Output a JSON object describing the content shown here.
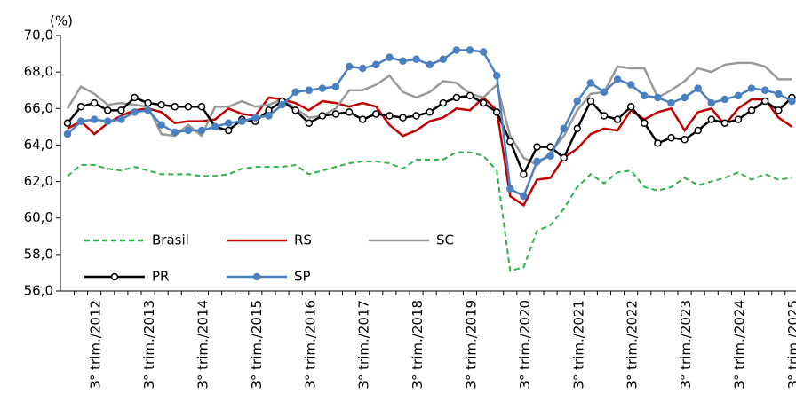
{
  "chart_data": {
    "type": "line",
    "y_label": "(%)",
    "categories": [
      null,
      null,
      "3° trim./2012",
      null,
      null,
      null,
      "3° trim./2013",
      null,
      null,
      null,
      "3° trim./2014",
      null,
      null,
      null,
      "3° trim./2015",
      null,
      null,
      null,
      "3° trim./2016",
      null,
      null,
      null,
      "3° trim./2017",
      null,
      null,
      null,
      "3° trim./2018",
      null,
      null,
      null,
      "3° trim./2019",
      null,
      null,
      null,
      "3° trim./2020",
      null,
      null,
      null,
      "3° trim./2021",
      null,
      null,
      null,
      "3° trim./2022",
      null,
      null,
      null,
      "3° trim./2023",
      null,
      null,
      null,
      "3° trim./2024",
      null,
      null,
      null,
      "3° trim./2025"
    ],
    "ylim": [
      56,
      70
    ],
    "yticks": [
      {
        "value": 56,
        "label": "56,0"
      },
      {
        "value": 58,
        "label": "58,0"
      },
      {
        "value": 60,
        "label": "60,0"
      },
      {
        "value": 62,
        "label": "62,0"
      },
      {
        "value": 64,
        "label": "64,0"
      },
      {
        "value": 66,
        "label": "66,0"
      },
      {
        "value": 68,
        "label": "68,0"
      },
      {
        "value": 70,
        "label": "70,0"
      }
    ],
    "series": [
      {
        "name": "Brasil",
        "color": "#2db34a",
        "style": "dashed",
        "values": [
          62.3,
          62.9,
          62.9,
          62.7,
          62.6,
          62.8,
          62.6,
          62.4,
          62.4,
          62.4,
          62.3,
          62.3,
          62.4,
          62.7,
          62.8,
          62.8,
          62.8,
          62.9,
          62.4,
          62.6,
          62.8,
          63.0,
          63.1,
          63.1,
          63.0,
          62.7,
          63.2,
          63.2,
          63.2,
          63.6,
          63.6,
          63.4,
          62.6,
          57.1,
          57.3,
          59.3,
          59.6,
          60.5,
          61.7,
          62.4,
          61.9,
          62.5,
          62.6,
          61.7,
          61.5,
          61.7,
          62.2,
          61.8,
          62.0,
          62.2,
          62.5,
          62.1,
          62.4,
          62.1,
          62.2
        ]
      },
      {
        "name": "RS",
        "color": "#c00000",
        "style": "solid",
        "values": [
          64.9,
          65.3,
          64.6,
          65.2,
          65.6,
          65.9,
          66.0,
          65.8,
          65.2,
          65.3,
          65.3,
          65.4,
          66.0,
          65.7,
          65.6,
          66.6,
          66.5,
          66.3,
          65.9,
          66.4,
          66.3,
          66.1,
          66.3,
          66.1,
          65.1,
          64.5,
          64.8,
          65.3,
          65.5,
          66.0,
          65.9,
          66.6,
          65.9,
          61.2,
          60.7,
          62.1,
          62.2,
          63.3,
          63.8,
          64.6,
          64.9,
          64.8,
          65.9,
          65.4,
          65.8,
          66.0,
          64.8,
          65.8,
          66.0,
          65.1,
          66.0,
          66.5,
          66.5,
          65.5,
          65.0
        ]
      },
      {
        "name": "SC",
        "color": "#999999",
        "style": "solid",
        "values": [
          66.0,
          67.2,
          66.8,
          66.2,
          66.3,
          66.2,
          66.1,
          64.6,
          64.5,
          65.1,
          64.5,
          66.1,
          66.1,
          66.4,
          66.1,
          66.2,
          66.5,
          66.0,
          65.5,
          65.6,
          66.0,
          67.0,
          67.0,
          67.3,
          67.8,
          66.9,
          66.6,
          66.9,
          67.5,
          67.4,
          66.8,
          66.6,
          67.3,
          64.5,
          63.3,
          62.9,
          63.6,
          64.5,
          65.9,
          66.8,
          66.9,
          68.3,
          68.2,
          68.2,
          66.6,
          67.0,
          67.5,
          68.2,
          68.0,
          68.4,
          68.5,
          68.5,
          68.3,
          67.6,
          67.6
        ]
      },
      {
        "name": "PR",
        "color": "#000000",
        "style": "open-marker",
        "values": [
          65.2,
          66.1,
          66.3,
          65.9,
          65.9,
          66.6,
          66.3,
          66.2,
          66.1,
          66.1,
          66.1,
          65.0,
          64.8,
          65.4,
          65.3,
          65.9,
          66.4,
          65.9,
          65.2,
          65.6,
          65.7,
          65.8,
          65.4,
          65.7,
          65.6,
          65.5,
          65.6,
          65.8,
          66.3,
          66.6,
          66.7,
          66.3,
          65.8,
          64.2,
          62.4,
          63.9,
          63.9,
          63.3,
          64.9,
          66.4,
          65.6,
          65.4,
          66.1,
          65.2,
          64.1,
          64.4,
          64.3,
          64.8,
          65.4,
          65.2,
          65.4,
          65.9,
          66.4,
          65.9,
          66.6
        ]
      },
      {
        "name": "SP",
        "color": "#4a7fc1",
        "style": "filled-marker",
        "values": [
          64.6,
          65.3,
          65.4,
          65.3,
          65.4,
          65.8,
          65.9,
          65.1,
          64.7,
          64.8,
          64.8,
          65.0,
          65.2,
          65.3,
          65.5,
          65.6,
          66.2,
          66.9,
          67.0,
          67.1,
          67.2,
          68.3,
          68.2,
          68.4,
          68.8,
          68.6,
          68.7,
          68.4,
          68.7,
          69.2,
          69.2,
          69.1,
          67.8,
          61.6,
          61.2,
          63.1,
          63.4,
          64.9,
          66.4,
          67.4,
          66.9,
          67.6,
          67.3,
          66.7,
          66.6,
          66.3,
          66.6,
          67.1,
          66.3,
          66.5,
          66.7,
          67.1,
          67.0,
          66.8,
          66.4
        ]
      }
    ]
  }
}
